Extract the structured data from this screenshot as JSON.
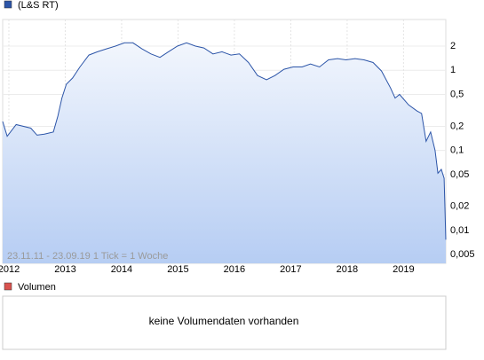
{
  "chart_data": {
    "type": "line",
    "log_scale": true,
    "grid": true,
    "annotation": "23.11.11 - 23.09.19   1 Tick = 1 Woche",
    "x": [
      2011.89,
      2011.97,
      2012.13,
      2012.39,
      2012.5,
      2012.63,
      2012.79,
      2012.87,
      2012.94,
      2013.02,
      2013.13,
      2013.26,
      2013.42,
      2013.57,
      2013.73,
      2013.89,
      2014.05,
      2014.2,
      2014.36,
      2014.52,
      2014.68,
      2014.83,
      2014.99,
      2015.15,
      2015.31,
      2015.46,
      2015.62,
      2015.78,
      2015.94,
      2016.09,
      2016.25,
      2016.41,
      2016.57,
      2016.72,
      2016.88,
      2017.04,
      2017.2,
      2017.35,
      2017.51,
      2017.67,
      2017.83,
      2017.98,
      2018.14,
      2018.3,
      2018.46,
      2018.61,
      2018.77,
      2018.85,
      2018.93,
      2019.09,
      2019.24,
      2019.32,
      2019.4,
      2019.48,
      2019.56,
      2019.61,
      2019.67,
      2019.72,
      2019.75
    ],
    "series": [
      {
        "name": "(L&S RT)",
        "color": "#2c55a8",
        "values": [
          0.23,
          0.15,
          0.21,
          0.19,
          0.155,
          0.16,
          0.17,
          0.27,
          0.45,
          0.67,
          0.8,
          1.1,
          1.55,
          1.7,
          1.85,
          2,
          2.2,
          2.2,
          1.85,
          1.6,
          1.45,
          1.7,
          2,
          2.2,
          2,
          1.9,
          1.6,
          1.7,
          1.55,
          1.6,
          1.25,
          0.86,
          0.76,
          0.86,
          1.03,
          1.1,
          1.1,
          1.2,
          1.1,
          1.35,
          1.4,
          1.35,
          1.4,
          1.35,
          1.25,
          0.98,
          0.6,
          0.45,
          0.5,
          0.37,
          0.31,
          0.29,
          0.13,
          0.17,
          0.1,
          0.052,
          0.058,
          0.045,
          0.0077
        ]
      }
    ],
    "xlim": [
      2011.89,
      2019.75
    ],
    "xticks": [
      2012,
      2013,
      2014,
      2015,
      2016,
      2017,
      2018,
      2019
    ],
    "ylim": [
      0.0039,
      4.3
    ],
    "yticks": [
      {
        "value": 0.005,
        "label": "0,005"
      },
      {
        "value": 0.01,
        "label": "0,01"
      },
      {
        "value": 0.02,
        "label": "0,02"
      },
      {
        "value": 0.05,
        "label": "0,05"
      },
      {
        "value": 0.1,
        "label": "0,1"
      },
      {
        "value": 0.2,
        "label": "0,2"
      },
      {
        "value": 0.5,
        "label": "0,5"
      },
      1,
      2
    ]
  },
  "volume_panel": {
    "legend": "Volumen",
    "color": "#d9534f",
    "message": "keine Volumendaten vorhanden"
  }
}
